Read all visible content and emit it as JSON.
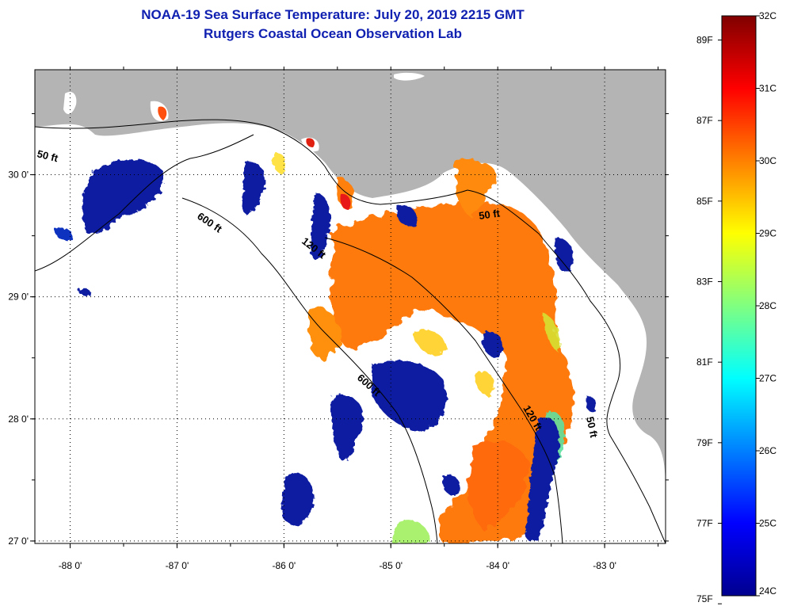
{
  "title": {
    "line1": "NOAA-19 Sea Surface Temperature:  July 20, 2019 2215 GMT",
    "line2": "Rutgers Coastal Ocean Observation Lab"
  },
  "map": {
    "lon_range": [
      -88.33,
      -82.43
    ],
    "lat_range": [
      26.98,
      30.86
    ],
    "x_ticks": [
      "-88 0'",
      "-87 0'",
      "-86 0'",
      "-85 0'",
      "-84 0'",
      "-83 0'"
    ],
    "x_tick_values": [
      -88,
      -87,
      -86,
      -85,
      -84,
      -83
    ],
    "y_ticks": [
      "30 0'",
      "29 0'",
      "28 0'",
      "27 0'"
    ],
    "y_tick_values": [
      30,
      29,
      28,
      27
    ],
    "grid": "dotted",
    "land_color": "#b4b4b4",
    "no_data_color": "#ffffff",
    "depth_contours": [
      "50 ft",
      "600 ft",
      "120 ft",
      "50 ft",
      "600 ft",
      "120 ft",
      "50 ft"
    ]
  },
  "colorbar": {
    "celsius_labels": [
      "32C",
      "31C",
      "30C",
      "29C",
      "28C",
      "27C",
      "26C",
      "25C",
      "24C"
    ],
    "celsius_values": [
      32,
      31,
      30,
      29,
      28,
      27,
      26,
      25,
      24
    ],
    "fahrenheit_labels": [
      "89F",
      "87F",
      "85F",
      "83F",
      "81F",
      "79F",
      "77F",
      "75F"
    ],
    "fahrenheit_values": [
      89,
      87,
      85,
      83,
      81,
      79,
      77,
      75
    ],
    "range_c": [
      24,
      32
    ],
    "colormap": "jet",
    "colors": [
      "#00008f",
      "#0000ff",
      "#0080ff",
      "#00ffff",
      "#80ff80",
      "#ffff00",
      "#ff8000",
      "#ff0000",
      "#800000"
    ]
  }
}
